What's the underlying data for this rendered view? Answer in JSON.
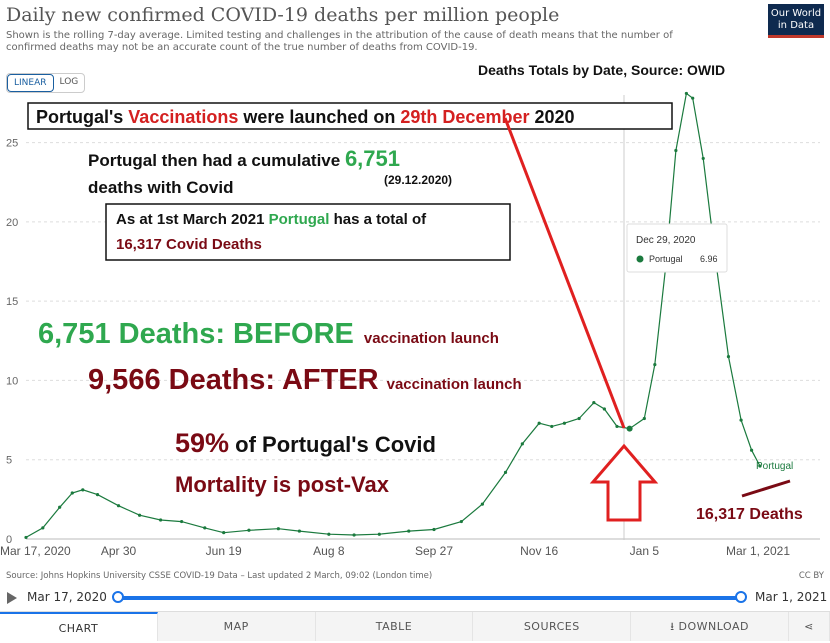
{
  "header": {
    "title": "Daily new confirmed COVID-19 deaths per million people",
    "subtitle": "Shown is the rolling 7-day average. Limited testing and challenges in the attribution of the cause of death means that the number of confirmed deaths may not be an accurate count of the true number of deaths from COVID-19.",
    "logo_line1": "Our World",
    "logo_line2": "in Data"
  },
  "toggle": {
    "linear": "LINEAR",
    "log": "LOG"
  },
  "annotations": {
    "source_label": "Deaths Totals by Date, Source: OWID",
    "launch_a": "Portugal's ",
    "launch_b": "Vaccinations",
    "launch_c": " were launched on ",
    "launch_d": "29th December",
    "launch_e": " 2020",
    "cum_a": "Portugal then had a cumulative ",
    "cum_b": "6,751",
    "cum_c": "deaths with Covid",
    "cum_date": "(29.12.2020)",
    "total_a": "As at 1st March 2021 ",
    "total_b": "Portugal",
    "total_c": " has a total of",
    "total_d": "16,317 Covid Deaths",
    "before_a": "6,751 Deaths: BEFORE",
    "before_b": "vaccination launch",
    "after_a": "9,566 Deaths: AFTER",
    "after_b": "vaccination launch",
    "pct_a": "59%",
    "pct_b": " of Portugal's Covid",
    "pct_c": "Mortality is ",
    "pct_d": "post-Vax",
    "end_deaths": "16,317  Deaths"
  },
  "tooltip": {
    "date": "Dec 29, 2020",
    "series": "Portugal",
    "value": "6.96"
  },
  "footer": {
    "source": "Source: Johns Hopkins University CSSE COVID-19 Data – Last updated 2 March, 09:02 (London time)",
    "license": "CC BY"
  },
  "timeline": {
    "start": "Mar 17, 2020",
    "end": "Mar 1, 2021"
  },
  "tabs": [
    "CHART",
    "MAP",
    "TABLE",
    "SOURCES",
    "DOWNLOAD"
  ],
  "colors": {
    "series": "#1b7a3e",
    "accent_red": "#d42020",
    "dark_red": "#7a0a14",
    "green_text": "#2fa84f"
  },
  "chart_data": {
    "type": "line",
    "title": "Daily new confirmed COVID-19 deaths per million people",
    "xlabel": "",
    "ylabel": "",
    "ylim": [
      0,
      28
    ],
    "yticks": [
      0,
      5,
      10,
      15,
      20,
      25
    ],
    "xticks": [
      "Mar 17, 2020",
      "Apr 30",
      "Jun 19",
      "Aug 8",
      "Sep 27",
      "Nov 16",
      "Jan 5",
      "Mar 1, 2021"
    ],
    "grid": true,
    "series": [
      {
        "name": "Portugal",
        "points": [
          [
            "2020-03-17",
            0.1
          ],
          [
            "2020-03-25",
            0.7
          ],
          [
            "2020-04-02",
            2.0
          ],
          [
            "2020-04-08",
            2.9
          ],
          [
            "2020-04-13",
            3.1
          ],
          [
            "2020-04-20",
            2.8
          ],
          [
            "2020-04-30",
            2.1
          ],
          [
            "2020-05-10",
            1.5
          ],
          [
            "2020-05-20",
            1.2
          ],
          [
            "2020-05-30",
            1.1
          ],
          [
            "2020-06-10",
            0.7
          ],
          [
            "2020-06-19",
            0.4
          ],
          [
            "2020-07-01",
            0.55
          ],
          [
            "2020-07-15",
            0.65
          ],
          [
            "2020-07-25",
            0.5
          ],
          [
            "2020-08-08",
            0.3
          ],
          [
            "2020-08-20",
            0.25
          ],
          [
            "2020-09-01",
            0.3
          ],
          [
            "2020-09-15",
            0.5
          ],
          [
            "2020-09-27",
            0.6
          ],
          [
            "2020-10-10",
            1.1
          ],
          [
            "2020-10-20",
            2.2
          ],
          [
            "2020-10-31",
            4.2
          ],
          [
            "2020-11-08",
            6.0
          ],
          [
            "2020-11-16",
            7.3
          ],
          [
            "2020-11-22",
            7.1
          ],
          [
            "2020-11-28",
            7.3
          ],
          [
            "2020-12-05",
            7.6
          ],
          [
            "2020-12-12",
            8.6
          ],
          [
            "2020-12-17",
            8.2
          ],
          [
            "2020-12-23",
            7.1
          ],
          [
            "2020-12-29",
            6.96
          ],
          [
            "2021-01-05",
            7.6
          ],
          [
            "2021-01-10",
            11.0
          ],
          [
            "2021-01-15",
            17.0
          ],
          [
            "2021-01-20",
            24.5
          ],
          [
            "2021-01-25",
            28.1
          ],
          [
            "2021-01-28",
            27.8
          ],
          [
            "2021-02-02",
            24.0
          ],
          [
            "2021-02-08",
            17.5
          ],
          [
            "2021-02-14",
            11.5
          ],
          [
            "2021-02-20",
            7.5
          ],
          [
            "2021-02-25",
            5.6
          ],
          [
            "2021-03-01",
            4.6
          ]
        ]
      }
    ],
    "tooltip_point": [
      "2020-12-29",
      6.96
    ],
    "end_label": "Portugal"
  }
}
